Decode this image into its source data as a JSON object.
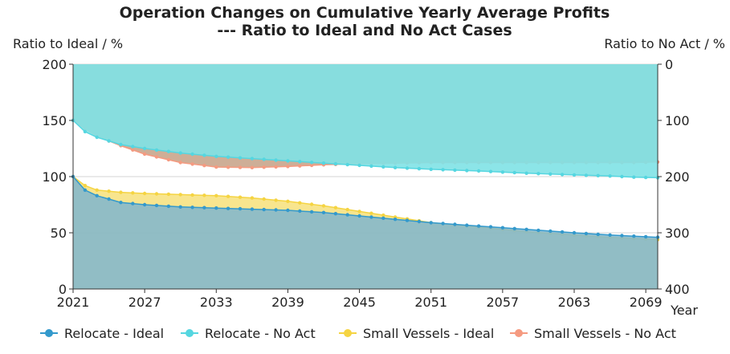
{
  "chart_data": {
    "type": "area",
    "title_line1": "Operation Changes on Cumulative Yearly Average Profits",
    "title_line2": "--- Ratio to Ideal and No Act Cases",
    "ylabel_left": "Ratio to Ideal / %",
    "ylabel_right": "Ratio to No Act / %",
    "xlabel": "Year",
    "x_ticks": [
      2021,
      2027,
      2033,
      2039,
      2045,
      2051,
      2057,
      2063,
      2069
    ],
    "ylim_left": [
      0,
      200
    ],
    "ylim_right": [
      0,
      400
    ],
    "y_ticks_left": [
      0,
      50,
      100,
      150,
      200
    ],
    "y_ticks_right": [
      0,
      100,
      200,
      300,
      400
    ],
    "right_axis_inverted": true,
    "x_start": 2021,
    "x_end": 2070,
    "series": [
      {
        "name": "Relocate - Ideal",
        "axis": "left",
        "color": "#3399cc",
        "fill": "#7fb6cf",
        "x": [
          2021,
          2022,
          2023,
          2025,
          2027,
          2030,
          2033,
          2036,
          2039,
          2042,
          2045,
          2048,
          2051,
          2055,
          2059,
          2063,
          2066,
          2068,
          2070
        ],
        "values": [
          100,
          88,
          83,
          77,
          75,
          73,
          72,
          71,
          70,
          68,
          65,
          62,
          59,
          56,
          53,
          50,
          48,
          47,
          46
        ]
      },
      {
        "name": "Relocate - No Act",
        "axis": "right",
        "color": "#55d6e0",
        "fill": "#7fe2e6",
        "x": [
          2021,
          2022,
          2023,
          2025,
          2027,
          2030,
          2033,
          2036,
          2039,
          2042,
          2045,
          2048,
          2051,
          2055,
          2059,
          2063,
          2066,
          2068,
          2070
        ],
        "values": [
          100,
          120,
          130,
          143,
          150,
          158,
          164,
          168,
          172,
          176,
          180,
          184,
          187,
          190,
          194,
          197,
          199,
          201,
          202
        ]
      },
      {
        "name": "Small Vessels - Ideal",
        "axis": "left",
        "color": "#f5d442",
        "fill": "#f7e07a",
        "x": [
          2021,
          2022,
          2023,
          2025,
          2027,
          2030,
          2033,
          2036,
          2039,
          2042,
          2045,
          2048,
          2051,
          2055,
          2059,
          2063,
          2066,
          2068,
          2070
        ],
        "values": [
          100,
          92,
          88,
          86,
          85,
          84,
          83,
          81,
          78,
          74,
          69,
          64,
          59,
          55,
          51,
          48,
          46,
          45,
          44
        ]
      },
      {
        "name": "Small Vessels - No Act",
        "axis": "right",
        "color": "#f59a80",
        "fill": "#c9a58c",
        "x": [
          2021,
          2022,
          2023,
          2025,
          2027,
          2030,
          2033,
          2036,
          2039,
          2042,
          2045,
          2048,
          2051,
          2055,
          2059,
          2063,
          2066,
          2068,
          2070
        ],
        "values": [
          100,
          115,
          128,
          145,
          160,
          175,
          183,
          184,
          182,
          179,
          177,
          176,
          175,
          175,
          175,
          175,
          175,
          175,
          174
        ]
      }
    ],
    "legend_position": "bottom"
  }
}
